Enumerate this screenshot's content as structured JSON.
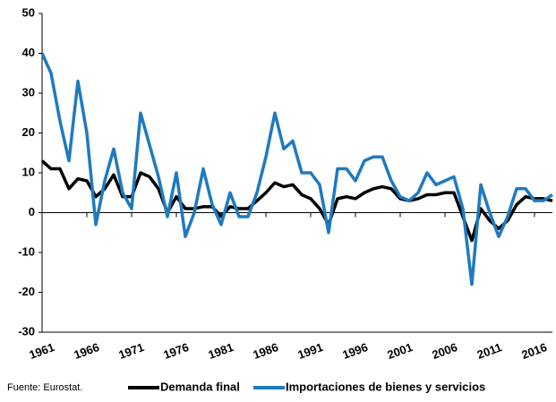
{
  "chart_data": {
    "type": "line",
    "source": "Fuente: Eurostat.",
    "x": [
      1961,
      1962,
      1963,
      1964,
      1965,
      1966,
      1967,
      1968,
      1969,
      1970,
      1971,
      1972,
      1973,
      1974,
      1975,
      1976,
      1977,
      1978,
      1979,
      1980,
      1981,
      1982,
      1983,
      1984,
      1985,
      1986,
      1987,
      1988,
      1989,
      1990,
      1991,
      1992,
      1993,
      1994,
      1995,
      1996,
      1997,
      1998,
      1999,
      2000,
      2001,
      2002,
      2003,
      2004,
      2005,
      2006,
      2007,
      2008,
      2009,
      2010,
      2011,
      2012,
      2013,
      2014,
      2015,
      2016,
      2017,
      2018
    ],
    "series": [
      {
        "name": "Demanda final",
        "color": "#000000",
        "values": [
          13,
          11,
          11,
          6,
          8.5,
          8,
          4,
          6,
          9.5,
          4,
          4,
          10,
          9,
          6,
          0,
          4,
          1,
          1,
          1.5,
          1.5,
          -1,
          1.5,
          1,
          1,
          3,
          5,
          7.5,
          6.5,
          7,
          4.5,
          3.5,
          1,
          -3,
          3.5,
          4,
          3.5,
          5,
          6,
          6.5,
          6,
          3.5,
          3,
          3.5,
          4.5,
          4.5,
          5,
          5,
          -1,
          -7,
          1,
          -2,
          -4,
          -2,
          2,
          4,
          3.5,
          3.5,
          3
        ]
      },
      {
        "name": "Importaciones de bienes y servicios",
        "color": "#1f7ac0",
        "values": [
          40,
          35,
          23,
          13,
          33,
          20,
          -3,
          8,
          16,
          5,
          1,
          25,
          17,
          9,
          -1,
          10,
          -6,
          0,
          11,
          2,
          -3,
          5,
          -1,
          -1,
          5,
          14,
          25,
          16,
          18,
          10,
          10,
          7,
          -5,
          11,
          11,
          8,
          13,
          14,
          14,
          8,
          4,
          3,
          5,
          10,
          7,
          8,
          9,
          1,
          -18,
          7,
          0,
          -6,
          -1,
          6,
          6,
          3,
          3,
          4.5
        ]
      }
    ],
    "xlim": [
      1961,
      2018
    ],
    "xticks": [
      1961,
      1966,
      1971,
      1976,
      1981,
      1986,
      1991,
      1996,
      2001,
      2006,
      2011,
      2016
    ],
    "ylim": [
      -30,
      50
    ],
    "yticks": [
      -30,
      -20,
      -10,
      0,
      10,
      20,
      30,
      40,
      50
    ]
  }
}
